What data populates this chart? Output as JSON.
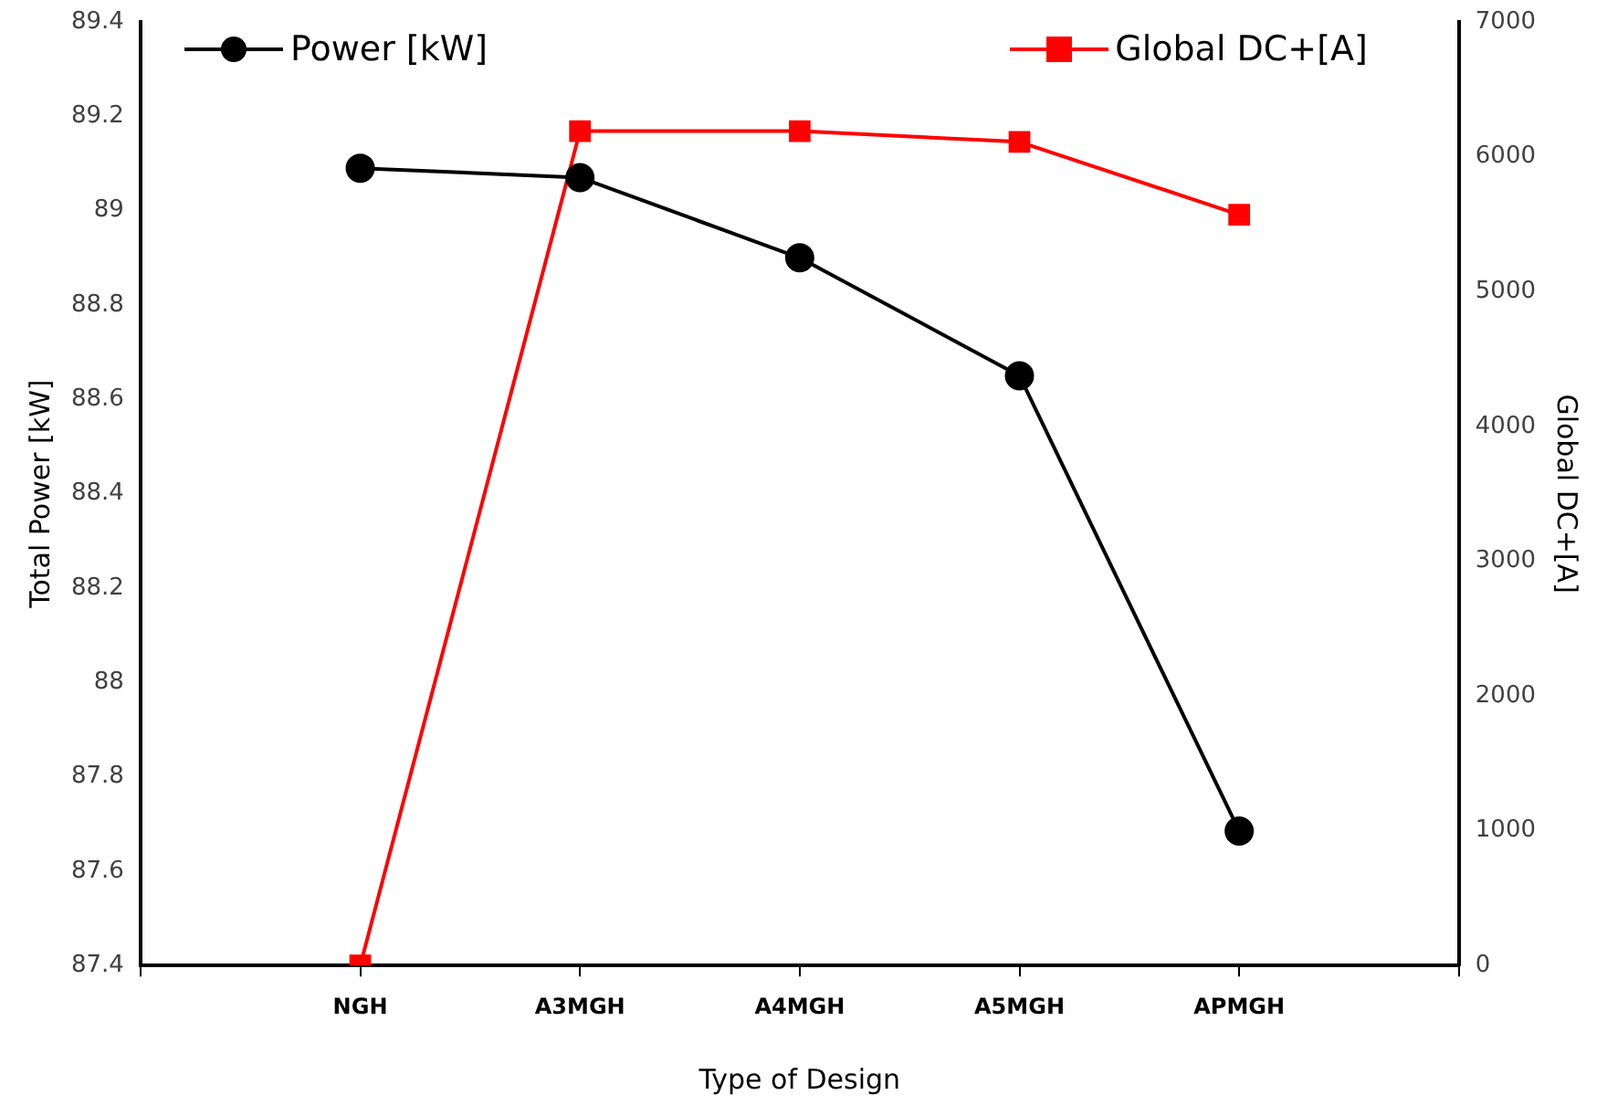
{
  "chart_data": {
    "type": "line",
    "xlabel": "Type of Design",
    "ylabel": "Total Power [kW]",
    "y2label": "Global DC+[A]",
    "categories": [
      null,
      "NGH",
      "A3MGH",
      "A4MGH",
      "A5MGH",
      "APMGH",
      null
    ],
    "series": [
      {
        "name": "Power [kW]",
        "color": "#000000",
        "marker": "circle",
        "values": [
          null,
          89.09,
          89.07,
          88.9,
          88.65,
          87.685,
          null
        ]
      },
      {
        "name": "Global DC+[A]",
        "color": "#ff0000",
        "marker": "square",
        "axis": "y2",
        "values": [
          null,
          0,
          6190,
          6190,
          6110,
          5570,
          null
        ]
      }
    ],
    "ylim": [
      87.4,
      89.4
    ],
    "yticks": [
      {
        "value": 87.4,
        "label": "87.4"
      },
      {
        "value": 87.6,
        "label": "87.6"
      },
      {
        "value": 87.8,
        "label": "87.8"
      },
      88,
      {
        "value": 88.2,
        "label": "88.2"
      },
      {
        "value": 88.4,
        "label": "88.4"
      },
      {
        "value": 88.6,
        "label": "88.6"
      },
      {
        "value": 88.8,
        "label": "88.8"
      },
      89,
      {
        "value": 89.2,
        "label": "89.2"
      },
      {
        "value": 89.4,
        "label": "89.4"
      }
    ],
    "y2lim": [
      0,
      7000
    ],
    "y2ticks": [
      0,
      1000,
      2000,
      3000,
      4000,
      5000,
      6000,
      7000
    ],
    "grid": false,
    "legend": "top"
  }
}
